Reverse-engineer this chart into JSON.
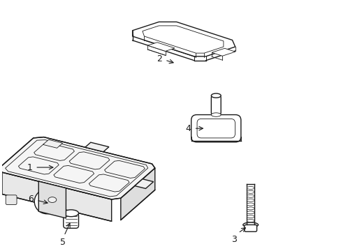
{
  "background_color": "#ffffff",
  "line_color": "#1a1a1a",
  "lw": 1.0,
  "tlw": 0.6,
  "fig_width": 4.89,
  "fig_height": 3.6,
  "dpi": 100
}
